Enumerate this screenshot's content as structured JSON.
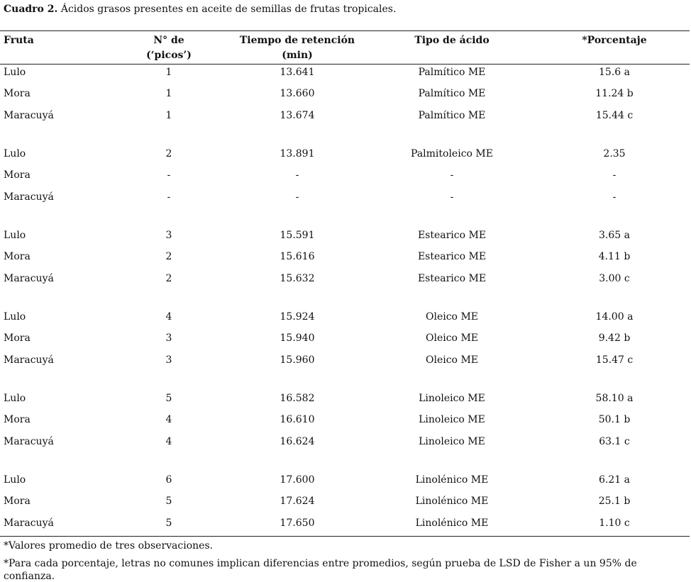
{
  "caption": {
    "label": "Cuadro 2.",
    "text": "Ácidos grasos presentes en aceite de semillas de frutas tropicales."
  },
  "table": {
    "header": [
      [
        "Fruta"
      ],
      [
        "N° de",
        "(‘picos’)"
      ],
      [
        "Tiempo de retención",
        "(min)"
      ],
      [
        "Tipo de ácido"
      ],
      [
        "*Porcentaje"
      ]
    ],
    "groups": [
      [
        [
          "Lulo",
          "1",
          "13.641",
          "Palmítico ME",
          "15.6 a"
        ],
        [
          "Mora",
          "1",
          "13.660",
          "Palmítico ME",
          "11.24 b"
        ],
        [
          "Maracuyá",
          "1",
          "13.674",
          "Palmítico ME",
          "15.44 c"
        ]
      ],
      [
        [
          "Lulo",
          "2",
          "13.891",
          "Palmitoleico ME",
          "2.35"
        ],
        [
          "Mora",
          "-",
          "-",
          "-",
          "-"
        ],
        [
          "Maracuyá",
          "-",
          "-",
          "-",
          "-"
        ]
      ],
      [
        [
          "Lulo",
          "3",
          "15.591",
          "Estearico ME",
          "3.65 a"
        ],
        [
          "Mora",
          "2",
          "15.616",
          "Estearico ME",
          "4.11 b"
        ],
        [
          "Maracuyá",
          "2",
          "15.632",
          "Estearico ME",
          "3.00 c"
        ]
      ],
      [
        [
          "Lulo",
          "4",
          "15.924",
          "Oleico ME",
          "14.00 a"
        ],
        [
          "Mora",
          "3",
          "15.940",
          "Oleico ME",
          "9.42 b"
        ],
        [
          "Maracuyá",
          "3",
          "15.960",
          "Oleico ME",
          "15.47 c"
        ]
      ],
      [
        [
          "Lulo",
          "5",
          "16.582",
          "Linoleico ME",
          "58.10 a"
        ],
        [
          "Mora",
          "4",
          "16.610",
          "Linoleico ME",
          "50.1 b"
        ],
        [
          "Maracuyá",
          "4",
          "16.624",
          "Linoleico ME",
          "63.1 c"
        ]
      ],
      [
        [
          "Lulo",
          "6",
          "17.600",
          "Linolénico ME",
          "6.21 a"
        ],
        [
          "Mora",
          "5",
          "17.624",
          "Linolénico ME",
          "25.1 b"
        ],
        [
          "Maracuyá",
          "5",
          "17.650",
          "Linolénico ME",
          "1.10 c"
        ]
      ]
    ]
  },
  "footnotes": [
    "*Valores promedio de tres observaciones.",
    "*Para cada porcentaje, letras no comunes implican diferencias entre promedios, según prueba de LSD de Fisher a un 95% de confianza."
  ]
}
